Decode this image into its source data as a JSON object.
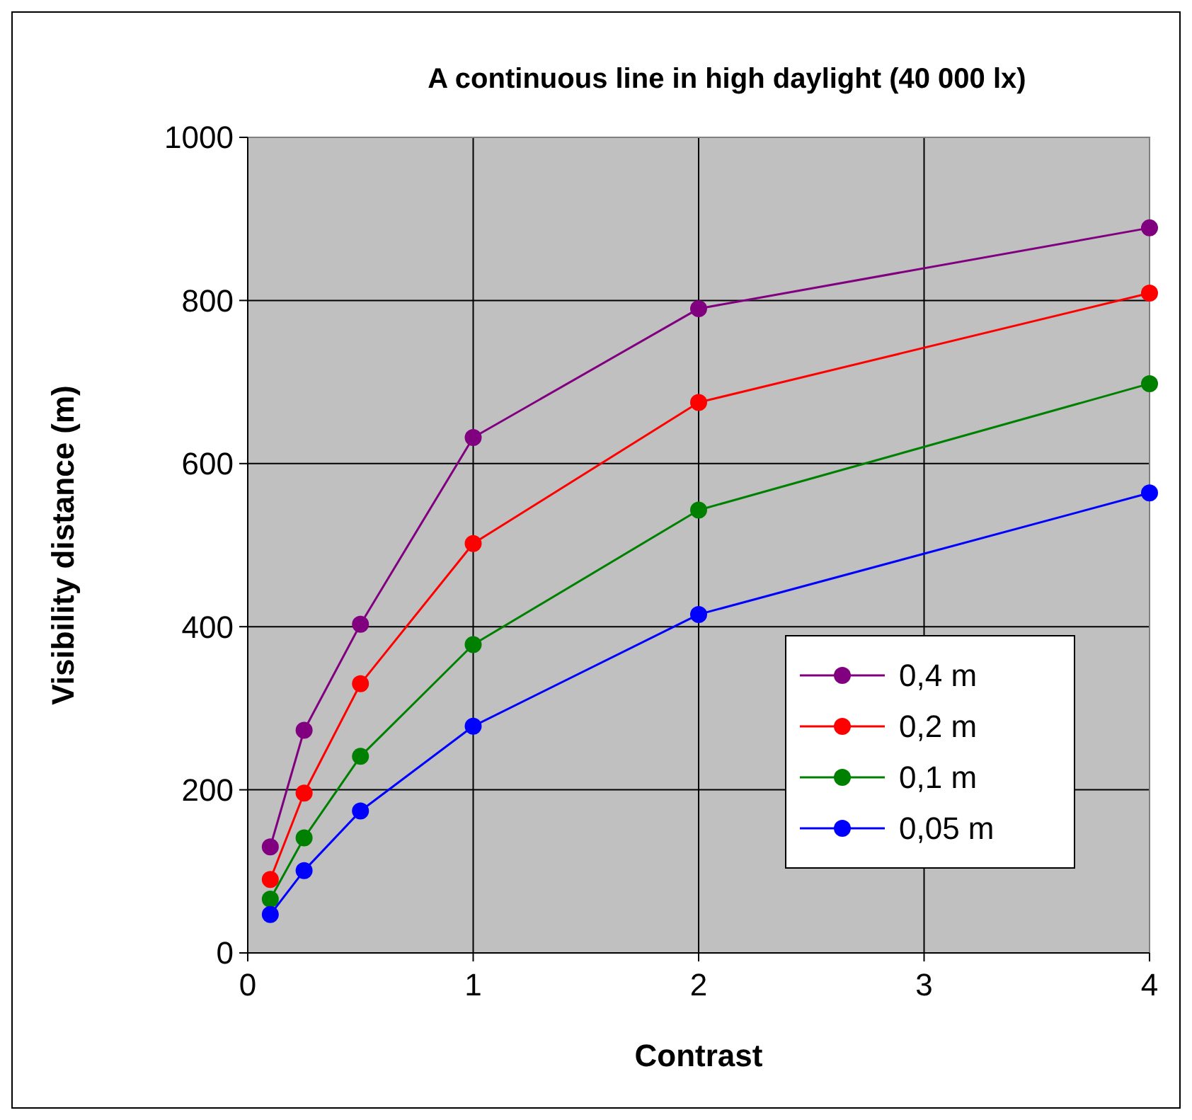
{
  "chart_data": {
    "type": "line",
    "title": "A continuous line in high daylight  (40 000 lx)",
    "xlabel": "Contrast",
    "ylabel": "Visibility distance (m)",
    "x": [
      0.1,
      0.25,
      0.5,
      1,
      2,
      4
    ],
    "xlim": [
      0,
      4
    ],
    "xticks": [
      0,
      1,
      2,
      3,
      4
    ],
    "ylim": [
      0,
      1000
    ],
    "yticks": [
      0,
      200,
      400,
      600,
      800,
      1000
    ],
    "grid": true,
    "legend": "bottom right",
    "marker": "circle",
    "line_style": "solid",
    "series": [
      {
        "name": "0,4 m",
        "color": "#800080",
        "values": [
          130,
          273,
          403,
          632,
          790,
          889
        ]
      },
      {
        "name": "0,2 m",
        "color": "#ff0000",
        "values": [
          90,
          196,
          330,
          502,
          675,
          809
        ]
      },
      {
        "name": "0,1 m",
        "color": "#008000",
        "values": [
          66,
          141,
          241,
          378,
          543,
          698
        ]
      },
      {
        "name": "0,05 m",
        "color": "#0000ff",
        "values": [
          47,
          101,
          174,
          278,
          415,
          564
        ]
      }
    ]
  }
}
